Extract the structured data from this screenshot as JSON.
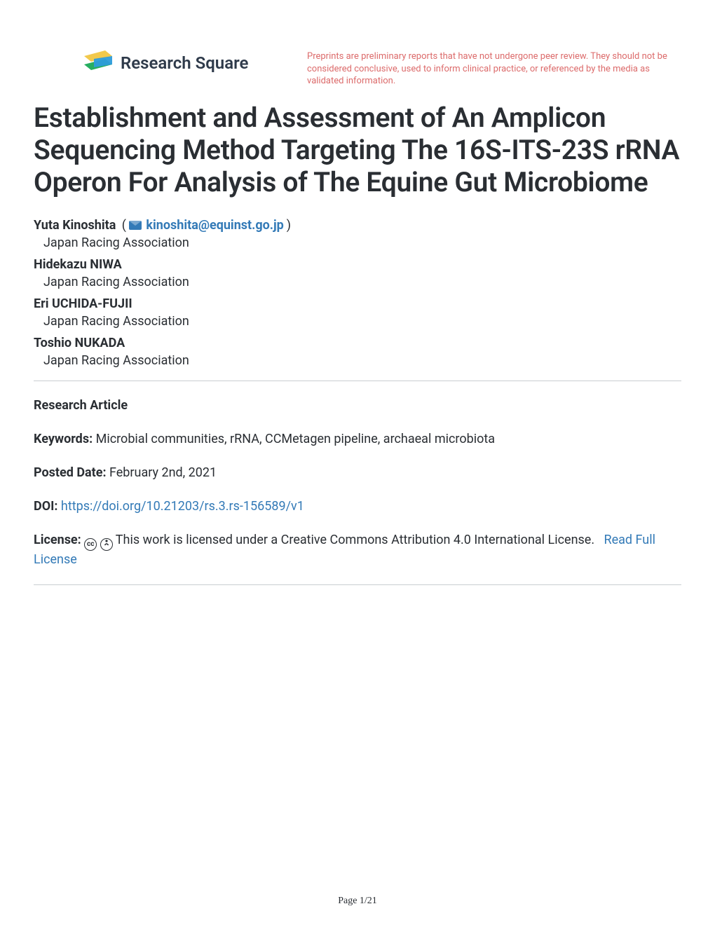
{
  "header": {
    "brand_name": "Research Square",
    "disclaimer": "Preprints are preliminary reports that have not undergone peer review. They should not be considered conclusive, used to inform clinical practice, or referenced by the media as validated information.",
    "logo_colors": {
      "yellow": "#f2c94c",
      "teal": "#2d9cdb",
      "green": "#27ae60"
    }
  },
  "title": "Establishment and Assessment of An Amplicon Sequencing Method Targeting The 16S-ITS-23S rRNA Operon For Analysis of The Equine Gut Microbiome",
  "authors": [
    {
      "name": "Yuta Kinoshita",
      "email": "kinoshita@equinst.go.jp",
      "affiliation": "Japan Racing Association",
      "is_corresponding": true
    },
    {
      "name": "Hidekazu NIWA",
      "affiliation": "Japan Racing Association"
    },
    {
      "name": "Eri UCHIDA-FUJII",
      "affiliation": "Japan Racing Association"
    },
    {
      "name": "Toshio NUKADA",
      "affiliation": "Japan Racing Association"
    }
  ],
  "article_type": "Research Article",
  "keywords_label": "Keywords:",
  "keywords": "Microbial communities, rRNA, CCMetagen pipeline, archaeal microbiota",
  "posted_label": "Posted Date:",
  "posted_date": "February 2nd, 2021",
  "doi_label": "DOI:",
  "doi_url": "https://doi.org/10.21203/rs.3.rs-156589/v1",
  "license_label": "License:",
  "license_text": "This work is licensed under a Creative Commons Attribution 4.0 International License.",
  "license_link_text": "Read Full License",
  "cc_symbols": {
    "cc": "cc",
    "by": "🄯"
  },
  "page_indicator": "Page 1/21",
  "colors": {
    "text": "#2a2e33",
    "link": "#337ab7",
    "disclaimer": "#dc6b6b",
    "divider": "#c9cdd1",
    "background": "#ffffff"
  },
  "typography": {
    "title_fontsize": 39,
    "body_fontsize": 18,
    "disclaimer_fontsize": 13,
    "brand_fontsize": 24
  }
}
